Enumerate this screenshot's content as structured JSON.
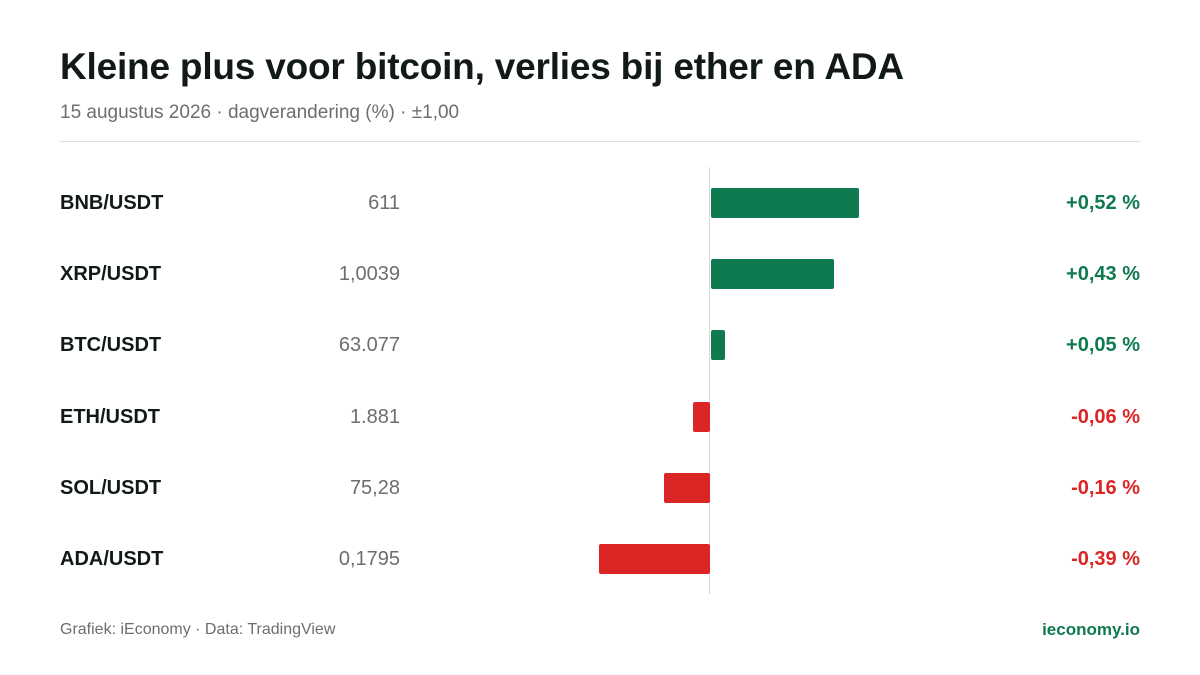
{
  "header": {
    "title": "Kleine plus voor bitcoin, verlies bij ether en ADA",
    "subtitle": "15 augustus 2026 · dagverandering (%) · ±1,00"
  },
  "footer": {
    "source": "Grafiek: iEconomy · Data: TradingView",
    "brand": "ieconomy.io"
  },
  "colors": {
    "positive": "#0f7a4f",
    "negative": "#dc2626",
    "positive_text": "#0f7a4f",
    "negative_text": "#dc2626"
  },
  "chart_data": {
    "type": "bar",
    "orientation": "horizontal",
    "title": "Kleine plus voor bitcoin, verlies bij ether en ADA",
    "subtitle": "15 augustus 2026 · dagverandering (%) · ±1,00",
    "categories": [
      "BNB/USDT",
      "XRP/USDT",
      "BTC/USDT",
      "ETH/USDT",
      "SOL/USDT",
      "ADA/USDT"
    ],
    "prices": [
      "611",
      "1,0039",
      "63.077",
      "1.881",
      "75,28",
      "0,1795"
    ],
    "values": [
      0.52,
      0.43,
      0.05,
      -0.06,
      -0.16,
      -0.39
    ],
    "value_labels": [
      "+0,52 %",
      "+0,43 %",
      "+0,05 %",
      "-0,06 %",
      "-0,16 %",
      "-0,39 %"
    ],
    "xlim": [
      -1.0,
      1.0
    ],
    "grid": false,
    "legend": "none"
  },
  "rows": [
    {
      "pair": "BNB/USDT",
      "price": "611",
      "change": "+0,52 %"
    },
    {
      "pair": "XRP/USDT",
      "price": "1,0039",
      "change": "+0,43 %"
    },
    {
      "pair": "BTC/USDT",
      "price": "63.077",
      "change": "+0,05 %"
    },
    {
      "pair": "ETH/USDT",
      "price": "1.881",
      "change": "-0,06 %"
    },
    {
      "pair": "SOL/USDT",
      "price": "75,28",
      "change": "-0,16 %"
    },
    {
      "pair": "ADA/USDT",
      "price": "0,1795",
      "change": "-0,39 %"
    }
  ]
}
